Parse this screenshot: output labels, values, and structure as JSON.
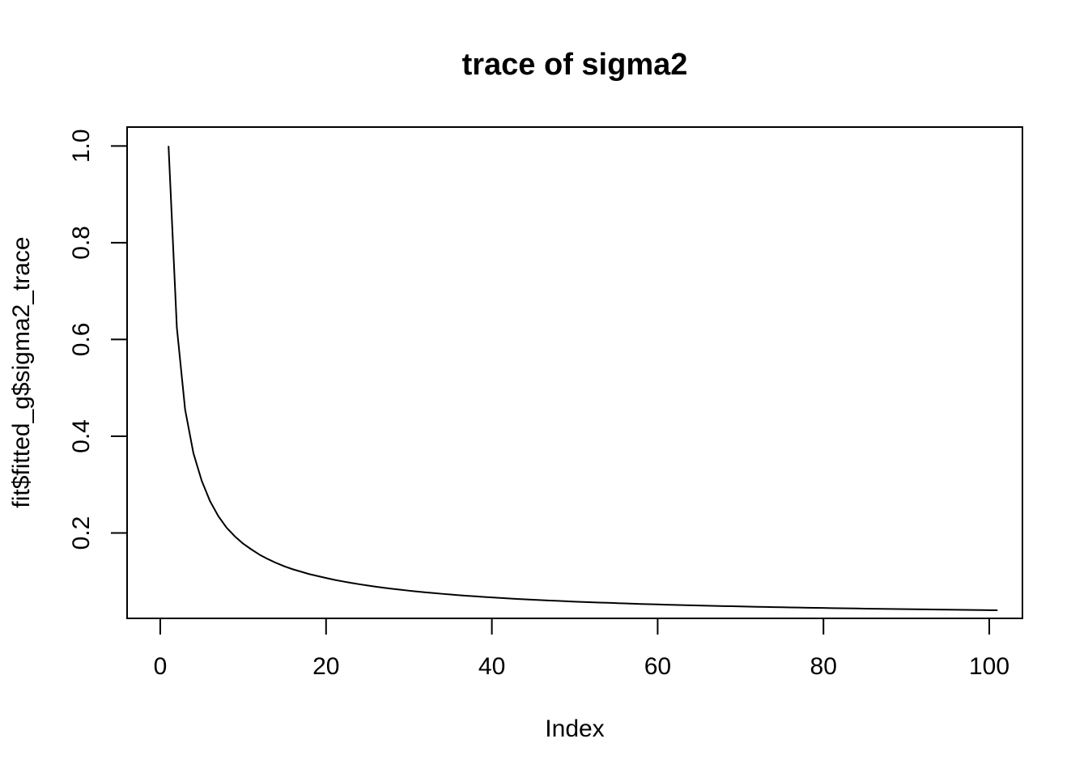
{
  "chart_data": {
    "type": "line",
    "title": "trace of sigma2",
    "xlabel": "Index",
    "ylabel": "fit$fitted_g$sigma2_trace",
    "xlim": [
      -4.0,
      104.0
    ],
    "ylim": [
      0.0236,
      1.039
    ],
    "x_ticks": [
      0,
      20,
      40,
      60,
      80,
      100
    ],
    "x_tick_labels": [
      "0",
      "20",
      "40",
      "60",
      "80",
      "100"
    ],
    "y_ticks": [
      0.2,
      0.4,
      0.6,
      0.8,
      1.0
    ],
    "y_tick_labels": [
      "0.2",
      "0.4",
      "0.6",
      "0.8",
      "1.0"
    ],
    "grid": false,
    "legend": "none",
    "line_color": "#000000",
    "series": [
      {
        "x": [
          1,
          2,
          3,
          4,
          5,
          6,
          7,
          8,
          9,
          10,
          11,
          12,
          13,
          14,
          15,
          16,
          17,
          18,
          19,
          20,
          21,
          22,
          23,
          24,
          25,
          26,
          27,
          28,
          29,
          30,
          31,
          32,
          33,
          34,
          35,
          36,
          37,
          38,
          39,
          40,
          41,
          42,
          43,
          44,
          45,
          46,
          47,
          48,
          49,
          50,
          51,
          52,
          53,
          54,
          55,
          56,
          57,
          58,
          59,
          60,
          61,
          62,
          63,
          64,
          65,
          66,
          67,
          68,
          69,
          70,
          71,
          72,
          73,
          74,
          75,
          76,
          77,
          78,
          79,
          80,
          81,
          82,
          83,
          84,
          85,
          86,
          87,
          88,
          89,
          90,
          91,
          92,
          93,
          94,
          95,
          96,
          97,
          98,
          99,
          100,
          101
        ],
        "values": [
          1.0,
          0.625,
          0.455,
          0.365,
          0.308,
          0.266,
          0.235,
          0.211,
          0.193,
          0.178,
          0.166,
          0.155,
          0.146,
          0.138,
          0.131,
          0.125,
          0.12,
          0.115,
          0.111,
          0.107,
          0.1033,
          0.1,
          0.097,
          0.0942,
          0.0915,
          0.0891,
          0.0868,
          0.0847,
          0.0827,
          0.0808,
          0.079,
          0.0773,
          0.0758,
          0.0743,
          0.0729,
          0.0715,
          0.0703,
          0.0691,
          0.0679,
          0.0668,
          0.0658,
          0.0648,
          0.0638,
          0.0629,
          0.0621,
          0.0612,
          0.0604,
          0.0597,
          0.0589,
          0.0582,
          0.0575,
          0.0569,
          0.0563,
          0.0557,
          0.0551,
          0.0545,
          0.054,
          0.0534,
          0.0529,
          0.0524,
          0.0519,
          0.0515,
          0.051,
          0.0506,
          0.0502,
          0.0498,
          0.0494,
          0.049,
          0.0486,
          0.0482,
          0.0479,
          0.0475,
          0.0472,
          0.0469,
          0.0465,
          0.0462,
          0.0459,
          0.0456,
          0.0453,
          0.0451,
          0.0448,
          0.0445,
          0.0443,
          0.044,
          0.0437,
          0.0435,
          0.0433,
          0.043,
          0.0428,
          0.0426,
          0.0424,
          0.0422,
          0.042,
          0.0417,
          0.0415,
          0.0413,
          0.0412,
          0.041,
          0.0408,
          0.0406,
          0.0404
        ]
      }
    ]
  }
}
